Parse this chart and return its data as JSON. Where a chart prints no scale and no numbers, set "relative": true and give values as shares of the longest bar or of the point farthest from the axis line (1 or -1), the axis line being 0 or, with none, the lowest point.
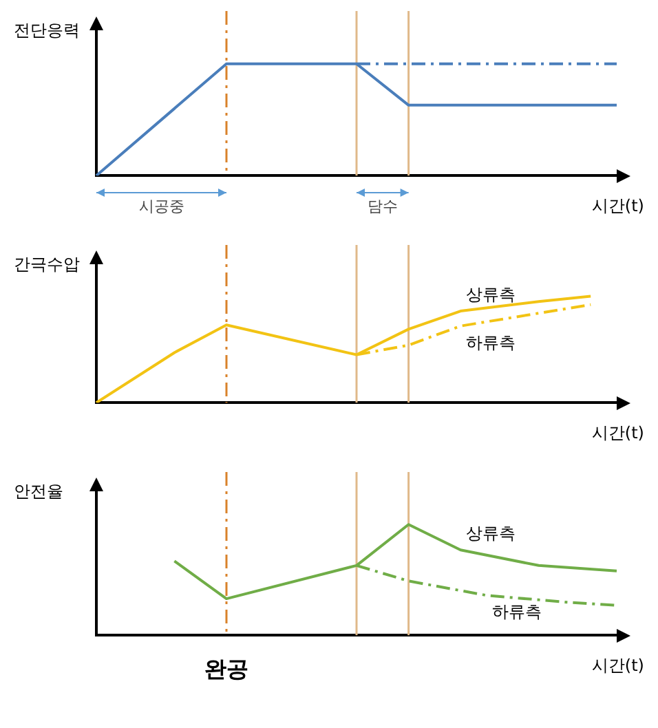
{
  "chart_data": [
    {
      "type": "line",
      "relative": true,
      "ylabel": "전단응력",
      "xlabel": "시간(t)",
      "grid": false,
      "legend": false,
      "marker": "none",
      "annotations": [
        "시공중",
        "담수"
      ],
      "categories": [
        null,
        null,
        null,
        null,
        null,
        null,
        null,
        null,
        null,
        null,
        null,
        null,
        null,
        null,
        null,
        null,
        null,
        null,
        null,
        null,
        null
      ],
      "series": [
        {
          "color": "#4a7ebb",
          "line_style": "solid",
          "values": [
            0,
            null,
            null,
            null,
            null,
            1,
            null,
            null,
            null,
            null,
            1,
            null,
            0.63,
            null,
            null,
            null,
            null,
            null,
            null,
            null,
            0.63
          ]
        },
        {
          "color": "#4a7ebb",
          "line_style": "dashed",
          "values": [
            null,
            null,
            null,
            null,
            null,
            null,
            null,
            null,
            null,
            null,
            1,
            null,
            null,
            null,
            null,
            null,
            null,
            null,
            null,
            null,
            1
          ]
        }
      ]
    },
    {
      "type": "line",
      "relative": true,
      "ylabel": "간극수압",
      "xlabel": "시간(t)",
      "grid": false,
      "legend": false,
      "marker": "none",
      "categories": [
        null,
        null,
        null,
        null,
        null,
        null,
        null,
        null,
        null,
        null,
        null,
        null,
        null,
        null,
        null,
        null,
        null,
        null,
        null,
        null,
        null
      ],
      "series": [
        {
          "name": "상류측",
          "color": "#f2c314",
          "line_style": "solid",
          "values": [
            0,
            null,
            null,
            0.47,
            null,
            0.73,
            null,
            null,
            null,
            null,
            0.45,
            null,
            0.69,
            null,
            0.86,
            null,
            null,
            0.95,
            null,
            1,
            null
          ]
        },
        {
          "name": "하류측",
          "color": "#f2c314",
          "line_style": "dashed",
          "values": [
            null,
            null,
            null,
            null,
            null,
            null,
            null,
            null,
            null,
            null,
            0.45,
            null,
            0.54,
            null,
            0.72,
            null,
            null,
            null,
            null,
            0.92,
            null
          ]
        }
      ]
    },
    {
      "type": "line",
      "relative": true,
      "ylabel": "안전율",
      "xlabel": "시간(t)",
      "grid": false,
      "legend": false,
      "marker": "none",
      "annotations": [
        "완공"
      ],
      "categories": [
        null,
        null,
        null,
        null,
        null,
        null,
        null,
        null,
        null,
        null,
        null,
        null,
        null,
        null,
        null,
        null,
        null,
        null,
        null,
        null,
        null
      ],
      "series": [
        {
          "name": "상류측",
          "color": "#70ad47",
          "line_style": "solid",
          "values": [
            null,
            null,
            null,
            0.67,
            null,
            0.33,
            null,
            null,
            null,
            null,
            0.63,
            null,
            1,
            null,
            0.77,
            null,
            null,
            0.63,
            null,
            null,
            0.58
          ]
        },
        {
          "name": "하류측",
          "color": "#70ad47",
          "line_style": "dashed",
          "values": [
            null,
            null,
            null,
            null,
            null,
            null,
            null,
            null,
            null,
            null,
            0.63,
            null,
            0.49,
            null,
            null,
            0.36,
            null,
            null,
            0.3,
            null,
            0.27
          ]
        }
      ]
    }
  ]
}
